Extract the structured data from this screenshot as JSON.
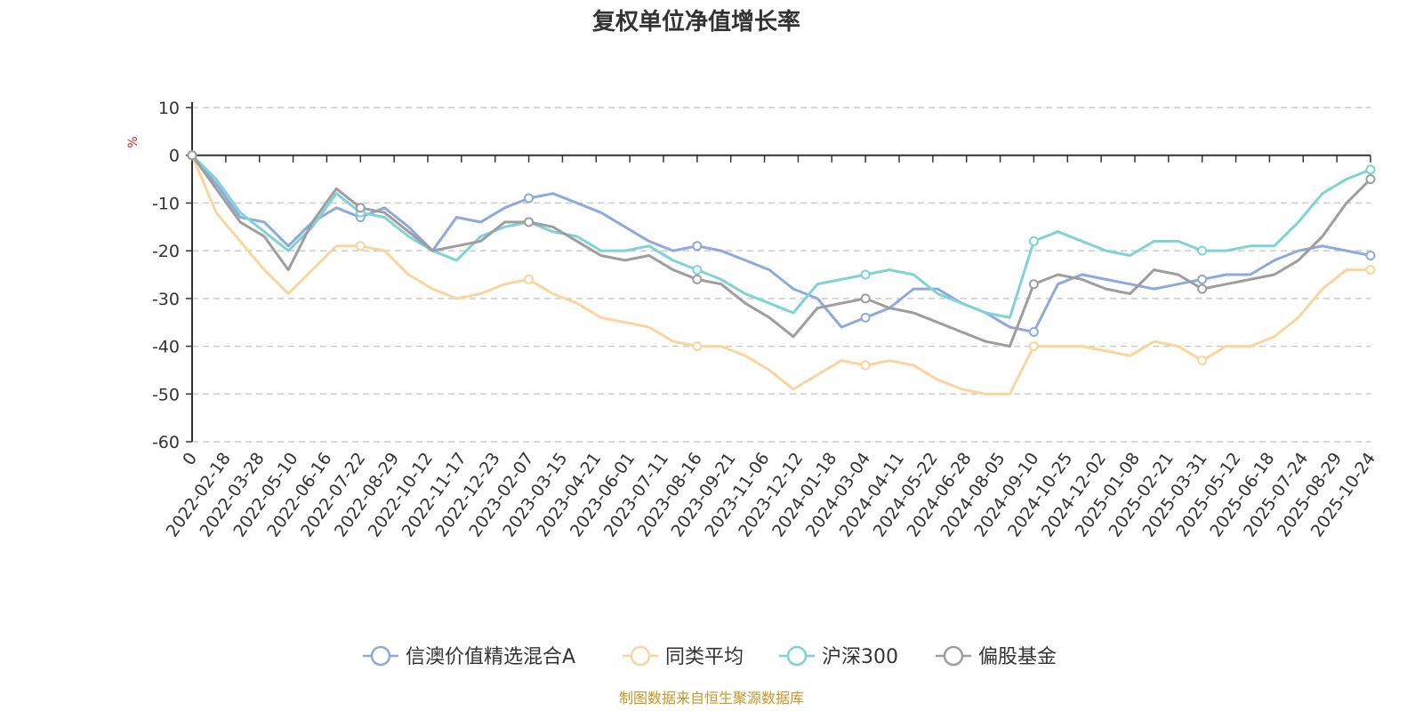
{
  "chart_data": {
    "type": "line",
    "title": "复权单位净值增长率",
    "ylabel": "%",
    "ylim": [
      -60,
      10
    ],
    "yticks": [
      10,
      0,
      -10,
      -20,
      -30,
      -40,
      -50,
      -60
    ],
    "x_ticks": [
      "0",
      "2022-02-18",
      "2022-03-28",
      "2022-05-10",
      "2022-06-16",
      "2022-07-22",
      "2022-08-29",
      "2022-10-12",
      "2022-11-17",
      "2022-12-23",
      "2023-02-07",
      "2023-03-15",
      "2023-04-21",
      "2023-06-01",
      "2023-07-11",
      "2023-08-16",
      "2023-09-21",
      "2023-11-06",
      "2023-12-12",
      "2024-01-18",
      "2024-03-04",
      "2024-04-11",
      "2024-05-22",
      "2024-06-28",
      "2024-08-05",
      "2024-09-10",
      "2024-10-25",
      "2024-12-02",
      "2025-01-08",
      "2025-02-21",
      "2025-03-31",
      "2025-05-12",
      "2025-06-18",
      "2025-07-24",
      "2025-08-29",
      "2025-10-24"
    ],
    "grid": "horizontal-dashed",
    "legend_position": "bottom",
    "series": [
      {
        "name": "信澳价值精选混合A",
        "color": "#8eaadc",
        "values": [
          0,
          -6,
          -13,
          -14,
          -19,
          -14,
          -11,
          -13,
          -11,
          -15,
          -20,
          -13,
          -14,
          -11,
          -9,
          -8,
          -10,
          -12,
          -15,
          -18,
          -20,
          -19,
          -20,
          -22,
          -24,
          -28,
          -30,
          -36,
          -34,
          -32,
          -28,
          -28,
          -31,
          -33,
          -36,
          -37,
          -27,
          -25,
          -26,
          -27,
          -28,
          -27,
          -26,
          -25,
          -25,
          -22,
          -20,
          -19,
          -20,
          -21
        ]
      },
      {
        "name": "同类平均",
        "color": "#fad59e",
        "values": [
          0,
          -12,
          -18,
          -24,
          -29,
          -24,
          -19,
          -19,
          -20,
          -25,
          -28,
          -30,
          -29,
          -27,
          -26,
          -29,
          -31,
          -34,
          -35,
          -36,
          -39,
          -40,
          -40,
          -42,
          -45,
          -49,
          -46,
          -43,
          -44,
          -43,
          -44,
          -47,
          -49,
          -50,
          -50,
          -40,
          -40,
          -40,
          -41,
          -42,
          -39,
          -40,
          -43,
          -40,
          -40,
          -38,
          -34,
          -28,
          -24,
          -24
        ]
      },
      {
        "name": "沪深300",
        "color": "#7fd3d6",
        "values": [
          0,
          -5,
          -12,
          -16,
          -20,
          -15,
          -8,
          -12,
          -13,
          -17,
          -20,
          -22,
          -17,
          -15,
          -14,
          -16,
          -17,
          -20,
          -20,
          -19,
          -22,
          -24,
          -26,
          -29,
          -31,
          -33,
          -27,
          -26,
          -25,
          -24,
          -25,
          -29,
          -31,
          -33,
          -34,
          -18,
          -16,
          -18,
          -20,
          -21,
          -18,
          -18,
          -20,
          -20,
          -19,
          -19,
          -14,
          -8,
          -5,
          -3
        ]
      },
      {
        "name": "偏股基金",
        "color": "#9e9e9e",
        "values": [
          0,
          -7,
          -14,
          -17,
          -24,
          -14,
          -7,
          -11,
          -12,
          -16,
          -20,
          -19,
          -18,
          -14,
          -14,
          -15,
          -18,
          -21,
          -22,
          -21,
          -24,
          -26,
          -27,
          -31,
          -34,
          -38,
          -32,
          -31,
          -30,
          -32,
          -33,
          -35,
          -37,
          -39,
          -40,
          -27,
          -25,
          -26,
          -28,
          -29,
          -24,
          -25,
          -28,
          -27,
          -26,
          -25,
          -22,
          -17,
          -10,
          -5
        ]
      }
    ]
  },
  "legend_items": [
    {
      "name": "信澳价值精选混合A",
      "color": "#8eaadc"
    },
    {
      "name": "同类平均",
      "color": "#fad59e"
    },
    {
      "name": "沪深300",
      "color": "#7fd3d6"
    },
    {
      "name": "偏股基金",
      "color": "#9e9e9e"
    }
  ],
  "source_text": "制图数据来自恒生聚源数据库",
  "colors": {
    "axis": "#333333",
    "grid": "#cccccc",
    "unit": "#e02020",
    "source": "#c8962a"
  }
}
